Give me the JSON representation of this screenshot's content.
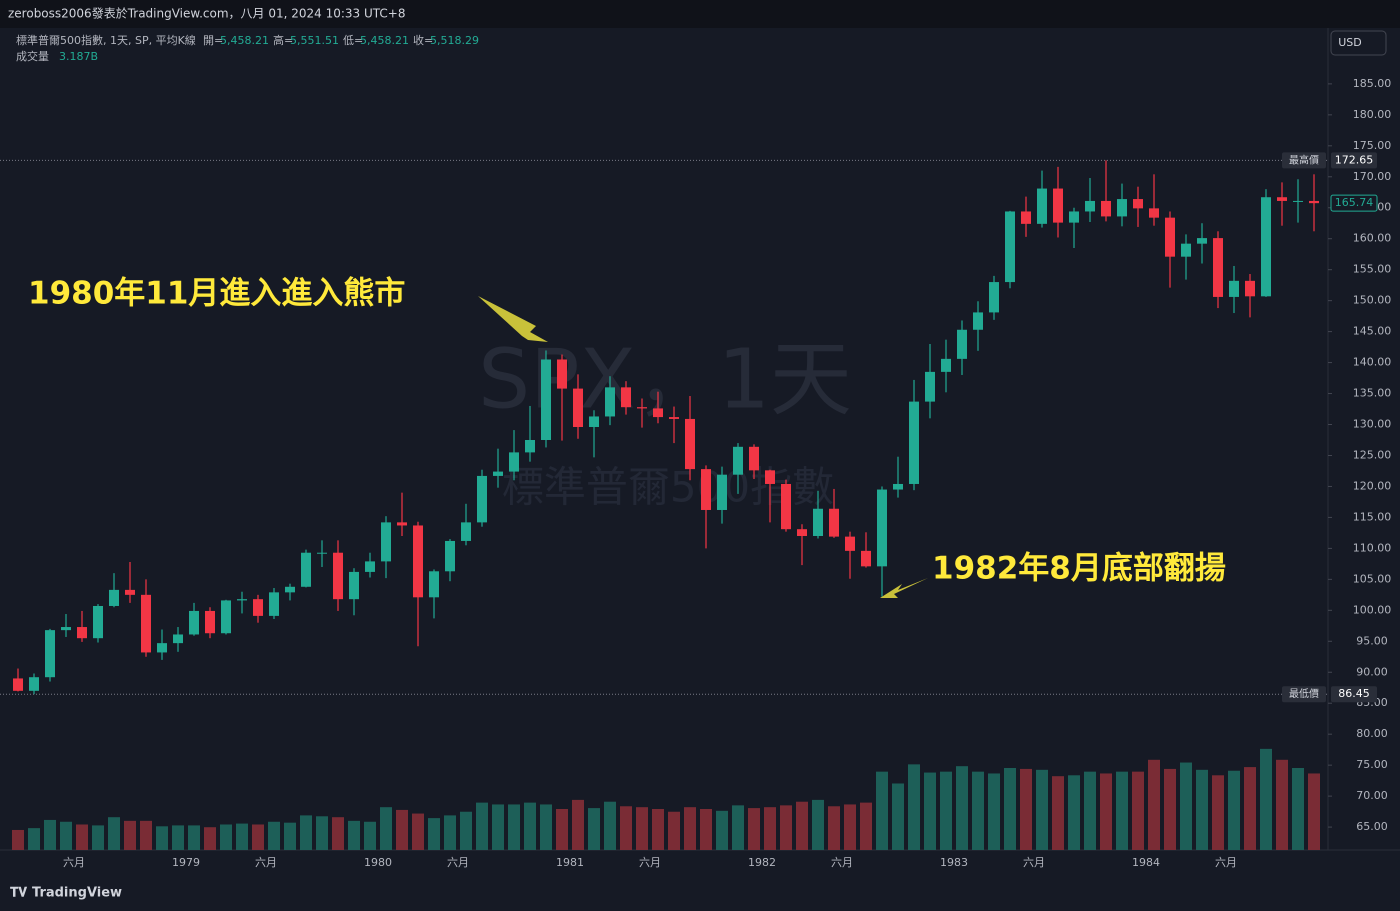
{
  "header": {
    "byline": "zeroboss2006發表於TradingView.com，八月 01, 2024 10:33 UTC+8"
  },
  "legend": {
    "symbol": "標準普爾500指數, 1天, SP, 平均K線",
    "ohlc": [
      {
        "label": "開=",
        "value": "5,458.21"
      },
      {
        "label": "高=",
        "value": "5,551.51"
      },
      {
        "label": "低=",
        "value": "5,458.21"
      },
      {
        "label": "收=",
        "value": "5,518.29"
      }
    ],
    "volume_label": "成交量",
    "volume_value": "3.187B"
  },
  "currency": "USD",
  "watermark": {
    "title": "SPX，1天",
    "subtitle": "標準普爾500指數"
  },
  "footer": {
    "logo": "TradingView"
  },
  "chart_data": {
    "type": "candlestick",
    "categories": [
      null,
      null,
      null,
      null,
      "六月",
      null,
      null,
      null,
      null,
      null,
      null,
      "1979",
      null,
      null,
      null,
      null,
      "六月",
      null,
      null,
      null,
      null,
      null,
      null,
      "1980",
      null,
      null,
      null,
      null,
      "六月",
      null,
      null,
      null,
      null,
      null,
      null,
      "1981",
      null,
      null,
      null,
      null,
      "六月",
      null,
      null,
      null,
      null,
      null,
      null,
      "1982",
      null,
      null,
      null,
      null,
      "六月",
      null,
      null,
      null,
      null,
      null,
      null,
      "1983",
      null,
      null,
      null,
      null,
      "六月",
      null,
      null,
      null,
      null,
      null,
      null,
      "1984",
      null,
      null,
      null,
      null,
      "六月",
      null,
      null,
      null,
      null,
      null
    ],
    "open": [
      89.0,
      87.0,
      89.2,
      96.8,
      97.3,
      95.5,
      100.7,
      103.3,
      102.5,
      93.2,
      94.7,
      96.1,
      99.9,
      96.3,
      101.6,
      101.8,
      99.1,
      102.9,
      103.8,
      109.3,
      109.3,
      101.8,
      106.2,
      107.9,
      114.2,
      113.7,
      102.1,
      106.3,
      111.2,
      114.2,
      121.7,
      122.4,
      125.5,
      127.5,
      140.5,
      135.8,
      129.6,
      131.3,
      136.0,
      132.8,
      132.6,
      131.2,
      130.9,
      122.8,
      116.2,
      121.9,
      126.4,
      122.6,
      120.4,
      113.1,
      112.0,
      116.4,
      111.9,
      109.6,
      107.1,
      119.5,
      120.4,
      133.7,
      138.5,
      140.6,
      145.3,
      148.1,
      153.0,
      164.4,
      162.4,
      168.1,
      162.6,
      164.4,
      166.1,
      163.6,
      166.4,
      164.9,
      163.4,
      157.1,
      159.2,
      160.1,
      150.6,
      153.2,
      150.7,
      166.7,
      166.1,
      166.1
    ],
    "high": [
      90.6,
      89.8,
      97.0,
      99.4,
      99.9,
      101.0,
      106.0,
      107.8,
      105.0,
      96.9,
      97.3,
      101.2,
      100.5,
      101.7,
      103.0,
      102.5,
      103.6,
      104.3,
      109.8,
      111.3,
      111.3,
      106.8,
      109.3,
      115.2,
      119.0,
      114.3,
      106.6,
      111.5,
      117.2,
      122.7,
      126.1,
      129.1,
      133.0,
      141.96,
      141.3,
      138.1,
      132.3,
      137.8,
      137.0,
      134.2,
      135.3,
      132.9,
      134.6,
      123.4,
      123.2,
      127.0,
      126.8,
      122.7,
      121.1,
      113.9,
      119.3,
      119.6,
      112.7,
      112.6,
      120.0,
      124.8,
      137.2,
      143.0,
      143.7,
      146.8,
      149.9,
      154.0,
      164.5,
      166.8,
      171.0,
      171.6,
      165.0,
      169.8,
      172.65,
      168.9,
      168.4,
      170.4,
      164.4,
      160.7,
      162.5,
      161.2,
      155.6,
      154.3,
      168.0,
      169.1,
      169.6,
      170.4
    ],
    "low": [
      86.9,
      86.45,
      88.5,
      95.7,
      94.9,
      94.8,
      100.5,
      101.2,
      92.5,
      92.0,
      93.3,
      95.9,
      95.5,
      96.1,
      99.5,
      98.0,
      98.6,
      101.6,
      103.7,
      107.0,
      99.9,
      99.2,
      105.3,
      105.2,
      112.0,
      94.2,
      98.7,
      104.7,
      110.5,
      113.5,
      119.8,
      121.0,
      124.0,
      126.3,
      127.4,
      127.7,
      124.7,
      129.9,
      131.6,
      129.5,
      130.2,
      127.0,
      121.0,
      110.0,
      114.0,
      118.8,
      121.2,
      114.2,
      112.7,
      107.3,
      111.6,
      111.7,
      105.1,
      106.9,
      102.2,
      118.2,
      119.4,
      131.0,
      135.2,
      138.0,
      141.9,
      146.9,
      152.0,
      160.3,
      161.8,
      160.2,
      158.5,
      162.7,
      162.8,
      162.0,
      161.9,
      162.1,
      152.1,
      153.4,
      156.0,
      148.8,
      148.0,
      147.3,
      150.6,
      162.1,
      162.6,
      161.2
    ],
    "close": [
      87.0,
      89.2,
      96.8,
      97.3,
      95.5,
      100.7,
      103.3,
      102.5,
      93.2,
      94.7,
      96.1,
      99.9,
      96.3,
      101.6,
      101.8,
      99.1,
      102.9,
      103.8,
      109.3,
      109.3,
      101.8,
      106.2,
      107.9,
      114.2,
      113.7,
      102.1,
      106.3,
      111.2,
      114.2,
      121.7,
      122.4,
      125.5,
      127.5,
      140.5,
      135.8,
      129.6,
      131.3,
      136.0,
      132.8,
      132.6,
      131.2,
      130.9,
      122.8,
      116.2,
      121.9,
      126.4,
      122.6,
      120.4,
      113.1,
      112.0,
      116.4,
      111.9,
      109.6,
      107.1,
      119.5,
      120.4,
      133.7,
      138.5,
      140.6,
      145.3,
      148.1,
      153.0,
      164.4,
      162.4,
      168.1,
      162.6,
      164.4,
      166.1,
      163.6,
      166.4,
      164.9,
      163.4,
      157.1,
      159.2,
      160.1,
      150.6,
      153.2,
      150.7,
      166.7,
      166.1,
      166.1,
      165.74
    ],
    "volume": [
      22,
      24,
      33,
      31,
      28,
      27,
      36,
      32,
      32,
      26,
      27,
      27,
      25,
      28,
      29,
      28,
      31,
      30,
      38,
      37,
      36,
      32,
      31,
      47,
      44,
      40,
      35,
      38,
      42,
      52,
      50,
      50,
      52,
      50,
      45,
      55,
      46,
      53,
      48,
      47,
      45,
      42,
      47,
      45,
      43,
      49,
      46,
      47,
      49,
      53,
      55,
      48,
      50,
      52,
      86,
      73,
      94,
      85,
      86,
      92,
      86,
      84,
      90,
      89,
      88,
      81,
      82,
      86,
      84,
      86,
      86,
      99,
      89,
      96,
      88,
      82,
      87,
      91,
      111,
      99,
      90,
      84
    ],
    "up_color": "#22ab94",
    "down_color": "#f23645",
    "volume_up_color": "#1d5f58",
    "volume_down_color": "#7a2c35",
    "ylim": [
      61.3,
      193.7
    ],
    "yticks": [
      {
        "value": 65,
        "label": "65.00"
      },
      {
        "value": 70,
        "label": "70.00"
      },
      {
        "value": 75,
        "label": "75.00"
      },
      {
        "value": 80,
        "label": "80.00"
      },
      {
        "value": 85,
        "label": "85.00"
      },
      {
        "value": 90,
        "label": "90.00"
      },
      {
        "value": 95,
        "label": "95.00"
      },
      {
        "value": 100,
        "label": "100.00"
      },
      {
        "value": 105,
        "label": "105.00"
      },
      {
        "value": 110,
        "label": "110.00"
      },
      {
        "value": 115,
        "label": "115.00"
      },
      {
        "value": 120,
        "label": "120.00"
      },
      {
        "value": 125,
        "label": "125.00"
      },
      {
        "value": 130,
        "label": "130.00"
      },
      {
        "value": 135,
        "label": "135.00"
      },
      {
        "value": 140,
        "label": "140.00"
      },
      {
        "value": 145,
        "label": "145.00"
      },
      {
        "value": 150,
        "label": "150.00"
      },
      {
        "value": 155,
        "label": "155.00"
      },
      {
        "value": 160,
        "label": "160.00"
      },
      {
        "value": 165,
        "label": "165.00"
      },
      {
        "value": 170,
        "label": "170.00"
      },
      {
        "value": 175,
        "label": "175.00"
      },
      {
        "value": 180,
        "label": "180.00"
      },
      {
        "value": 185,
        "label": "185.00"
      }
    ],
    "y2lim": [
      0,
      900
    ],
    "grid": false,
    "high_line": {
      "label": "最高價",
      "value": 172.65
    },
    "low_line": {
      "label": "最低價",
      "value": 86.45
    },
    "annotations": [
      "1980年11月進入進入熊市",
      "1982年8月底部翻揚"
    ]
  }
}
